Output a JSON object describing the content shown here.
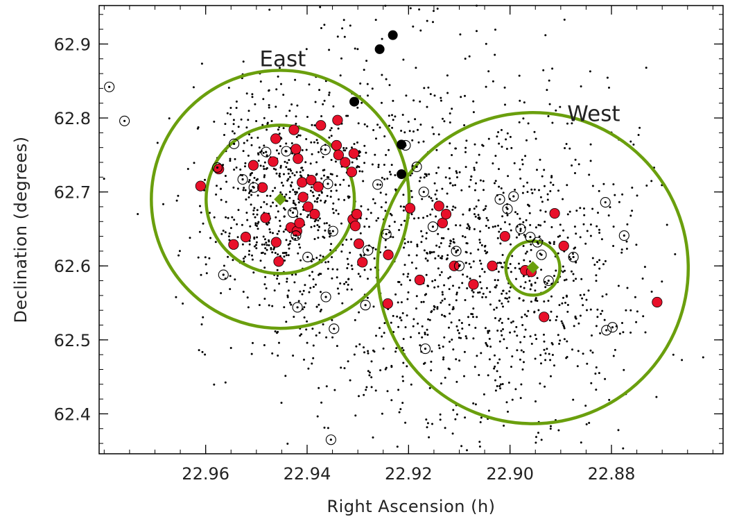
{
  "chart_data": {
    "type": "scatter",
    "title": "",
    "xlabel": "Right Ascension (h)",
    "ylabel": "Declination (degrees)",
    "xlim": [
      22.981,
      22.858
    ],
    "ylim": [
      62.346,
      62.952
    ],
    "x_ticks": [
      22.96,
      22.94,
      22.92,
      22.9,
      22.88
    ],
    "x_tick_labels": [
      "22.96",
      "22.94",
      "22.92",
      "22.90",
      "22.88"
    ],
    "y_ticks": [
      62.4,
      62.5,
      62.6,
      62.7,
      62.8,
      62.9
    ],
    "y_tick_labels": [
      "62.4",
      "62.5",
      "62.6",
      "62.7",
      "62.8",
      "62.9"
    ],
    "x_minor_step": 0.005,
    "y_minor_step": 0.02,
    "grid": false,
    "legend": "none",
    "colors": {
      "red": "#e8102a",
      "green": "#6a9f0d",
      "black": "#000000"
    },
    "annotations": [
      {
        "text": "East",
        "x": 22.9448,
        "y": 62.87
      },
      {
        "text": "West",
        "x": 22.8835,
        "y": 62.796
      }
    ],
    "circles": [
      {
        "name": "East outer",
        "x": 22.9453,
        "y": 62.69,
        "r_deg": 0.1744
      },
      {
        "name": "East inner",
        "x": 22.9453,
        "y": 62.69,
        "r_deg": 0.1003
      },
      {
        "name": "West outer",
        "x": 22.8955,
        "y": 62.597,
        "r_deg": 0.2103
      },
      {
        "name": "West inner",
        "x": 22.8955,
        "y": 62.597,
        "r_deg": 0.0365
      }
    ],
    "centers": [
      {
        "x": 22.9453,
        "y": 62.69
      },
      {
        "x": 22.8955,
        "y": 62.598
      }
    ],
    "background_sources": {
      "count": 1900,
      "seed": 7,
      "clusters": [
        {
          "x": 22.945,
          "y": 62.685,
          "sx": 0.009,
          "sy": 0.085,
          "frac": 0.34
        },
        {
          "x": 22.897,
          "y": 62.6,
          "sx": 0.012,
          "sy": 0.11,
          "frac": 0.36
        },
        {
          "x": 22.922,
          "y": 62.63,
          "sx": 0.013,
          "sy": 0.15,
          "frac": 0.3
        }
      ]
    },
    "series": [
      {
        "style": "red-filled",
        "points": [
          [
            22.961,
            62.708
          ],
          [
            22.9574,
            62.731
          ],
          [
            22.9545,
            62.629
          ],
          [
            22.9521,
            62.639
          ],
          [
            22.9506,
            62.736
          ],
          [
            22.9488,
            62.706
          ],
          [
            22.9482,
            62.665
          ],
          [
            22.9467,
            62.741
          ],
          [
            22.9462,
            62.772
          ],
          [
            22.9461,
            62.632
          ],
          [
            22.9456,
            62.606
          ],
          [
            22.9432,
            62.652
          ],
          [
            22.9426,
            62.784
          ],
          [
            22.9422,
            62.758
          ],
          [
            22.9418,
            62.745
          ],
          [
            22.942,
            62.647
          ],
          [
            22.9415,
            62.658
          ],
          [
            22.941,
            62.713
          ],
          [
            22.9408,
            62.693
          ],
          [
            22.9398,
            62.68
          ],
          [
            22.9392,
            62.716
          ],
          [
            22.9385,
            62.67
          ],
          [
            22.9378,
            62.707
          ],
          [
            22.9373,
            62.79
          ],
          [
            22.934,
            62.797
          ],
          [
            22.9342,
            62.763
          ],
          [
            22.9338,
            62.75
          ],
          [
            22.9325,
            62.74
          ],
          [
            22.9308,
            62.752
          ],
          [
            22.9312,
            62.727
          ],
          [
            22.931,
            62.663
          ],
          [
            22.9305,
            62.654
          ],
          [
            22.9302,
            62.67
          ],
          [
            22.9298,
            62.63
          ],
          [
            22.9291,
            62.605
          ],
          [
            22.924,
            62.615
          ],
          [
            22.9241,
            62.549
          ],
          [
            22.9178,
            62.581
          ],
          [
            22.9197,
            62.678
          ],
          [
            22.914,
            62.681
          ],
          [
            22.9133,
            62.658
          ],
          [
            22.9126,
            62.67
          ],
          [
            22.911,
            62.6
          ],
          [
            22.9072,
            62.575
          ],
          [
            22.9035,
            62.6
          ],
          [
            22.901,
            62.64
          ],
          [
            22.897,
            62.594
          ],
          [
            22.8958,
            62.592
          ],
          [
            22.8933,
            62.531
          ],
          [
            22.8912,
            62.671
          ],
          [
            22.8894,
            62.627
          ],
          [
            22.871,
            62.551
          ]
        ]
      },
      {
        "style": "black-filled",
        "points": [
          [
            22.9231,
            62.912
          ],
          [
            22.9257,
            62.893
          ],
          [
            22.9307,
            62.822
          ],
          [
            22.9214,
            62.764
          ],
          [
            22.9214,
            62.724
          ]
        ]
      },
      {
        "style": "open-circle",
        "points": [
          [
            22.979,
            62.842
          ],
          [
            22.976,
            62.796
          ],
          [
            22.9577,
            62.733
          ],
          [
            22.9544,
            62.765
          ],
          [
            22.9527,
            62.717
          ],
          [
            22.9505,
            62.706
          ],
          [
            22.9481,
            62.754
          ],
          [
            22.9441,
            62.755
          ],
          [
            22.9428,
            62.672
          ],
          [
            22.9364,
            62.757
          ],
          [
            22.9359,
            62.711
          ],
          [
            22.9349,
            62.647
          ],
          [
            22.9422,
            62.641
          ],
          [
            22.9419,
            62.544
          ],
          [
            22.9399,
            62.612
          ],
          [
            22.9363,
            62.558
          ],
          [
            22.9347,
            62.515
          ],
          [
            22.9353,
            62.365
          ],
          [
            22.9285,
            62.547
          ],
          [
            22.928,
            62.621
          ],
          [
            22.9261,
            62.71
          ],
          [
            22.9244,
            62.643
          ],
          [
            22.9206,
            62.763
          ],
          [
            22.9184,
            62.734
          ],
          [
            22.917,
            62.7
          ],
          [
            22.9167,
            62.488
          ],
          [
            22.9152,
            62.653
          ],
          [
            22.9106,
            62.62
          ],
          [
            22.91,
            62.6
          ],
          [
            22.902,
            62.69
          ],
          [
            22.9005,
            62.677
          ],
          [
            22.8993,
            62.694
          ],
          [
            22.8979,
            62.65
          ],
          [
            22.896,
            62.639
          ],
          [
            22.8946,
            62.632
          ],
          [
            22.8938,
            62.615
          ],
          [
            22.8924,
            62.58
          ],
          [
            22.8875,
            62.612
          ],
          [
            22.8812,
            62.686
          ],
          [
            22.881,
            62.513
          ],
          [
            22.8798,
            62.517
          ],
          [
            22.8775,
            62.641
          ],
          [
            22.9565,
            62.588
          ]
        ]
      }
    ]
  }
}
